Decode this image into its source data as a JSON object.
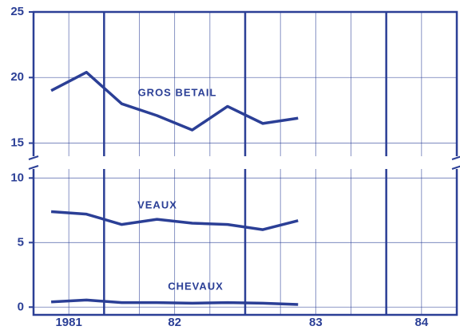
{
  "chart_data": [
    {
      "type": "line",
      "x": [
        1981.625,
        1981.875,
        1982.125,
        1982.375,
        1982.625,
        1982.875,
        1983.125,
        1983.375
      ],
      "series": [
        {
          "name": "GROS BETAIL",
          "color": "#2b3f96",
          "values": [
            19,
            20.4,
            18,
            17.1,
            16,
            17.8,
            16.5,
            16.9
          ]
        }
      ],
      "xlim": [
        1981.5,
        1984.5
      ],
      "xgrid": [
        1981.75,
        1982,
        1982.25,
        1982.5,
        1982.75,
        1983,
        1983.25,
        1983.5,
        1983.75,
        1984,
        1984.25
      ],
      "ylim": [
        14,
        25
      ],
      "yticks": [
        15,
        20,
        25
      ],
      "grid": true
    },
    {
      "type": "line",
      "x": [
        1981.625,
        1981.875,
        1982.125,
        1982.375,
        1982.625,
        1982.875,
        1983.125,
        1983.375
      ],
      "series": [
        {
          "name": "VEAUX",
          "color": "#2b3f96",
          "values": [
            7.4,
            7.2,
            6.4,
            6.8,
            6.5,
            6.4,
            6.0,
            6.7
          ]
        },
        {
          "name": "CHEVAUX",
          "color": "#2b3f96",
          "values": [
            0.4,
            0.55,
            0.35,
            0.35,
            0.3,
            0.35,
            0.3,
            0.2
          ]
        }
      ],
      "xlim": [
        1981.5,
        1984.5
      ],
      "xgrid": [
        1981.75,
        1982,
        1982.25,
        1982.5,
        1982.75,
        1983,
        1983.25,
        1983.5,
        1983.75,
        1984,
        1984.25
      ],
      "xticks": [
        {
          "value": 1981.75,
          "label": "1981"
        },
        {
          "value": 1982.5,
          "label": "82"
        },
        {
          "value": 1983.5,
          "label": "83"
        },
        {
          "value": 1984.25,
          "label": "84"
        }
      ],
      "ylim": [
        -0.6,
        10.7
      ],
      "yticks": [
        0,
        5,
        10
      ],
      "grid": true
    }
  ]
}
